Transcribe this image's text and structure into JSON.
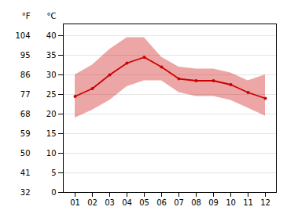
{
  "chart_data": {
    "type": "line",
    "categories": [
      "01",
      "02",
      "03",
      "04",
      "05",
      "06",
      "07",
      "08",
      "09",
      "10",
      "11",
      "12"
    ],
    "values": [
      24.5,
      26.5,
      30.0,
      33.0,
      34.5,
      32.0,
      29.0,
      28.5,
      28.5,
      27.5,
      25.5,
      24.0
    ],
    "upper": [
      30.0,
      32.5,
      36.5,
      39.5,
      39.5,
      34.5,
      32.0,
      31.5,
      31.5,
      30.5,
      28.5,
      30.0
    ],
    "lower": [
      19.0,
      21.0,
      23.5,
      27.0,
      28.5,
      28.5,
      25.5,
      24.5,
      24.5,
      23.5,
      21.5,
      19.5
    ],
    "color": "#cc0000",
    "marker": "circle",
    "ylabel": "°C",
    "y2label": "°F",
    "ylim": [
      0,
      43
    ],
    "yticks": [
      0,
      5,
      10,
      15,
      20,
      25,
      30,
      35,
      40
    ],
    "y2lim": [
      32,
      109.4
    ],
    "y2ticks": [
      32,
      41,
      50,
      59,
      68,
      77,
      86,
      95,
      104
    ],
    "grid": true
  }
}
